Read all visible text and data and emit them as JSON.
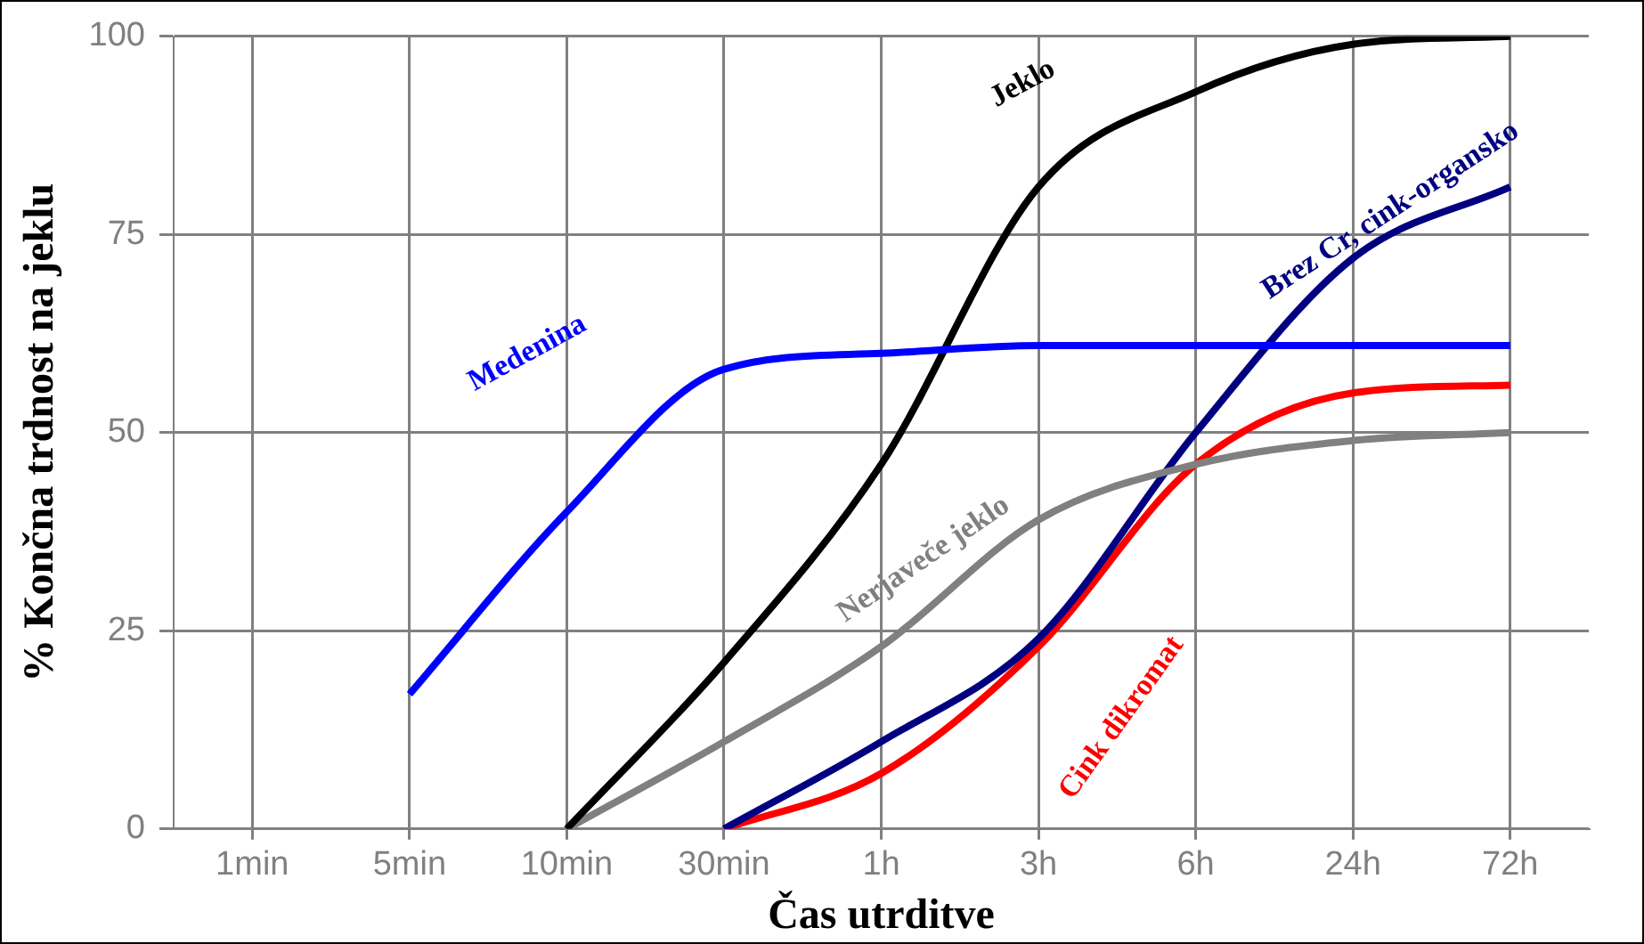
{
  "chart_data": {
    "type": "line",
    "xlabel": "Čas utrditve",
    "ylabel": "% Končna trdnost na jeklu",
    "categories": [
      "1min",
      "5min",
      "10min",
      "30min",
      "1h",
      "3h",
      "6h",
      "24h",
      "72h"
    ],
    "ylim": [
      0,
      100
    ],
    "yticks": [
      0,
      25,
      50,
      75,
      100
    ],
    "grid": true,
    "legend": false,
    "marker": "none",
    "line_style": "solid",
    "series": [
      {
        "name": "Medenina",
        "color": "#0000ff",
        "values": [
          null,
          17,
          40,
          58,
          60,
          61,
          61,
          61,
          61
        ]
      },
      {
        "name": "Jeklo",
        "color": "#000000",
        "values": [
          null,
          null,
          0,
          21,
          46,
          81,
          93,
          99,
          100
        ]
      },
      {
        "name": "Nerjaveče jeklo",
        "color": "#808080",
        "values": [
          null,
          null,
          0,
          11,
          23,
          39,
          46,
          49,
          50
        ]
      },
      {
        "name": "Brez Cr, cink-organsko",
        "color": "#000080",
        "values": [
          null,
          null,
          null,
          0,
          11,
          24,
          50,
          72,
          81
        ]
      },
      {
        "name": "Cink dikromat",
        "color": "#ff0000",
        "values": [
          null,
          null,
          null,
          0,
          7,
          23,
          46,
          55,
          56
        ]
      }
    ]
  }
}
